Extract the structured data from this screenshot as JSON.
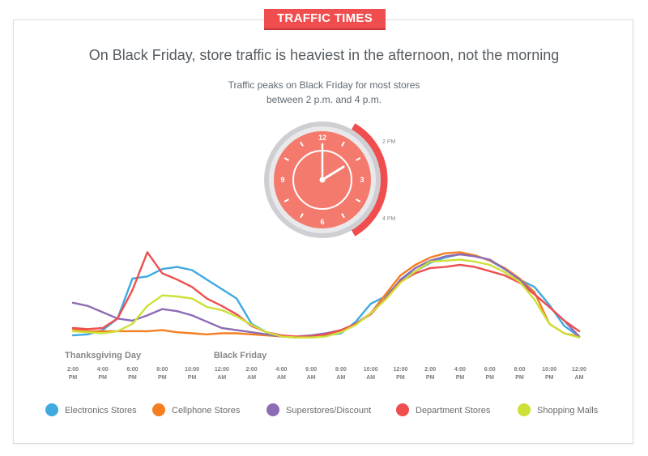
{
  "badge": "TRAFFIC TIMES",
  "title": "On Black Friday, store traffic is heaviest in the afternoon, not the morning",
  "subtitle_line1": "Traffic peaks on Black Friday for most stores",
  "subtitle_line2": "between 2 p.m. and 4 p.m.",
  "clock": {
    "numbers": [
      "12",
      "3",
      "6",
      "9"
    ],
    "label_start": "2 PM",
    "label_end": "4 PM",
    "face_color": "#f47a6d",
    "highlight_color": "#f04e4e"
  },
  "chart_data": {
    "type": "line",
    "day_labels": [
      {
        "text": "Thanksgiving Day",
        "x": 0
      },
      {
        "text": "Black Friday",
        "x": 10
      }
    ],
    "ticks": [
      {
        "top": "2:00",
        "bottom": "PM",
        "x": 0
      },
      {
        "top": "4:00",
        "bottom": "PM",
        "x": 2
      },
      {
        "top": "6:00",
        "bottom": "PM",
        "x": 4
      },
      {
        "top": "8:00",
        "bottom": "PM",
        "x": 6
      },
      {
        "top": "10:00",
        "bottom": "PM",
        "x": 8
      },
      {
        "top": "12:00",
        "bottom": "AM",
        "x": 10
      },
      {
        "top": "2:00",
        "bottom": "AM",
        "x": 12
      },
      {
        "top": "4:00",
        "bottom": "AM",
        "x": 14
      },
      {
        "top": "6:00",
        "bottom": "AM",
        "x": 16
      },
      {
        "top": "8:00",
        "bottom": "AM",
        "x": 18
      },
      {
        "top": "10:00",
        "bottom": "AM",
        "x": 20
      },
      {
        "top": "12:00",
        "bottom": "PM",
        "x": 22
      },
      {
        "top": "2:00",
        "bottom": "PM",
        "x": 24
      },
      {
        "top": "4:00",
        "bottom": "PM",
        "x": 26
      },
      {
        "top": "6:00",
        "bottom": "PM",
        "x": 28
      },
      {
        "top": "8:00",
        "bottom": "PM",
        "x": 30
      },
      {
        "top": "10:00",
        "bottom": "PM",
        "x": 32
      },
      {
        "top": "12:00",
        "bottom": "AM",
        "x": 34
      }
    ],
    "xlim": [
      0,
      34
    ],
    "ylim": [
      0,
      100
    ],
    "series": [
      {
        "name": "Electronics Stores",
        "color": "#3fa9e0",
        "points": [
          [
            0,
            3
          ],
          [
            1,
            4
          ],
          [
            2,
            8
          ],
          [
            3,
            19
          ],
          [
            4,
            57
          ],
          [
            5,
            59
          ],
          [
            6,
            66
          ],
          [
            7,
            68
          ],
          [
            8,
            65
          ],
          [
            9,
            56
          ],
          [
            10,
            47
          ],
          [
            11,
            38
          ],
          [
            12,
            14
          ],
          [
            13,
            6
          ],
          [
            14,
            2
          ],
          [
            15,
            1
          ],
          [
            16,
            2
          ],
          [
            17,
            3
          ],
          [
            18,
            5
          ],
          [
            19,
            16
          ],
          [
            20,
            33
          ],
          [
            21,
            40
          ],
          [
            22,
            55
          ],
          [
            23,
            64
          ],
          [
            24,
            72
          ],
          [
            25,
            77
          ],
          [
            26,
            80
          ],
          [
            27,
            79
          ],
          [
            28,
            74
          ],
          [
            29,
            66
          ],
          [
            30,
            56
          ],
          [
            31,
            49
          ],
          [
            32,
            32
          ],
          [
            33,
            12
          ],
          [
            34,
            2
          ]
        ]
      },
      {
        "name": "Cellphone Stores",
        "color": "#f57f20",
        "points": [
          [
            0,
            9
          ],
          [
            1,
            7
          ],
          [
            2,
            7
          ],
          [
            3,
            7
          ],
          [
            4,
            7
          ],
          [
            5,
            7
          ],
          [
            6,
            8
          ],
          [
            7,
            6
          ],
          [
            8,
            5
          ],
          [
            9,
            4
          ],
          [
            10,
            5
          ],
          [
            11,
            5
          ],
          [
            12,
            4
          ],
          [
            13,
            3
          ],
          [
            14,
            2
          ],
          [
            15,
            1
          ],
          [
            16,
            2
          ],
          [
            17,
            4
          ],
          [
            18,
            7
          ],
          [
            19,
            14
          ],
          [
            20,
            24
          ],
          [
            21,
            42
          ],
          [
            22,
            60
          ],
          [
            23,
            70
          ],
          [
            24,
            77
          ],
          [
            25,
            81
          ],
          [
            26,
            82
          ],
          [
            27,
            79
          ],
          [
            28,
            74
          ],
          [
            29,
            67
          ],
          [
            30,
            57
          ],
          [
            31,
            44
          ],
          [
            32,
            14
          ],
          [
            33,
            5
          ],
          [
            34,
            2
          ]
        ]
      },
      {
        "name": "Superstores/Discount",
        "color": "#8d6cb4",
        "points": [
          [
            0,
            34
          ],
          [
            1,
            31
          ],
          [
            2,
            25
          ],
          [
            3,
            19
          ],
          [
            4,
            17
          ],
          [
            5,
            22
          ],
          [
            6,
            28
          ],
          [
            7,
            26
          ],
          [
            8,
            22
          ],
          [
            9,
            16
          ],
          [
            10,
            10
          ],
          [
            11,
            8
          ],
          [
            12,
            6
          ],
          [
            13,
            4
          ],
          [
            14,
            2
          ],
          [
            15,
            2
          ],
          [
            16,
            3
          ],
          [
            17,
            5
          ],
          [
            18,
            8
          ],
          [
            19,
            14
          ],
          [
            20,
            24
          ],
          [
            21,
            38
          ],
          [
            22,
            56
          ],
          [
            23,
            67
          ],
          [
            24,
            74
          ],
          [
            25,
            78
          ],
          [
            26,
            80
          ],
          [
            27,
            78
          ],
          [
            28,
            75
          ],
          [
            29,
            66
          ],
          [
            30,
            56
          ],
          [
            31,
            42
          ],
          [
            32,
            30
          ],
          [
            33,
            17
          ],
          [
            34,
            2
          ]
        ]
      },
      {
        "name": "Department Stores",
        "color": "#f04e4e",
        "points": [
          [
            0,
            10
          ],
          [
            1,
            9
          ],
          [
            2,
            10
          ],
          [
            3,
            19
          ],
          [
            4,
            46
          ],
          [
            5,
            82
          ],
          [
            6,
            62
          ],
          [
            7,
            56
          ],
          [
            8,
            49
          ],
          [
            9,
            38
          ],
          [
            10,
            31
          ],
          [
            11,
            23
          ],
          [
            12,
            12
          ],
          [
            13,
            6
          ],
          [
            14,
            3
          ],
          [
            15,
            2
          ],
          [
            16,
            2
          ],
          [
            17,
            4
          ],
          [
            18,
            8
          ],
          [
            19,
            14
          ],
          [
            20,
            23
          ],
          [
            21,
            38
          ],
          [
            22,
            54
          ],
          [
            23,
            62
          ],
          [
            24,
            67
          ],
          [
            25,
            68
          ],
          [
            26,
            70
          ],
          [
            27,
            68
          ],
          [
            28,
            64
          ],
          [
            29,
            60
          ],
          [
            30,
            53
          ],
          [
            31,
            42
          ],
          [
            32,
            30
          ],
          [
            33,
            17
          ],
          [
            34,
            7
          ]
        ]
      },
      {
        "name": "Shopping Malls",
        "color": "#cde038",
        "points": [
          [
            0,
            7
          ],
          [
            1,
            6
          ],
          [
            2,
            5
          ],
          [
            3,
            7
          ],
          [
            4,
            14
          ],
          [
            5,
            31
          ],
          [
            6,
            41
          ],
          [
            7,
            40
          ],
          [
            8,
            38
          ],
          [
            9,
            30
          ],
          [
            10,
            27
          ],
          [
            11,
            21
          ],
          [
            12,
            13
          ],
          [
            13,
            6
          ],
          [
            14,
            2
          ],
          [
            15,
            1
          ],
          [
            16,
            1
          ],
          [
            17,
            2
          ],
          [
            18,
            6
          ],
          [
            19,
            13
          ],
          [
            20,
            24
          ],
          [
            21,
            37
          ],
          [
            22,
            53
          ],
          [
            23,
            64
          ],
          [
            24,
            73
          ],
          [
            25,
            74
          ],
          [
            26,
            75
          ],
          [
            27,
            73
          ],
          [
            28,
            70
          ],
          [
            29,
            63
          ],
          [
            30,
            54
          ],
          [
            31,
            37
          ],
          [
            32,
            14
          ],
          [
            33,
            5
          ],
          [
            34,
            1
          ]
        ]
      }
    ]
  }
}
